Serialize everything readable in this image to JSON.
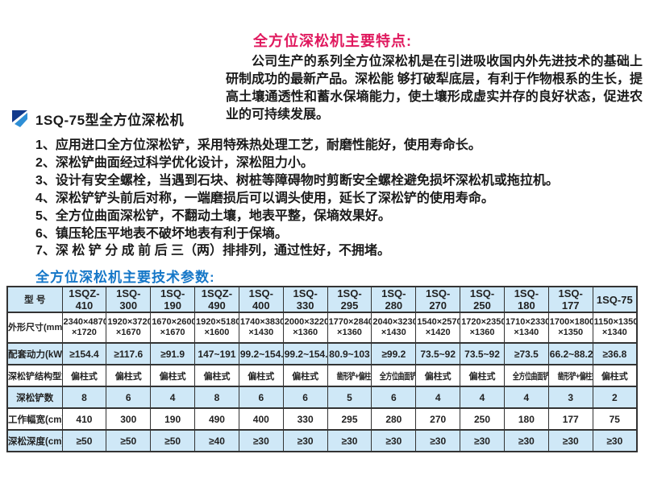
{
  "colors": {
    "feature_heading": "#e0195e",
    "params_heading": "#1577c8",
    "logo_dark": "#123a8c",
    "logo_light": "#2e8fd6",
    "table_row_alt": "#cfe8f7",
    "table_border": "#333333"
  },
  "features_section": {
    "heading": "全方位深松机主要特点:",
    "intro_paragraph": "公司生产的系列全方位深松机是在引进吸收国内外先进技术的基础上研制成功的最新产品。深松能 够打破犁底层，有利于作物根系的生长，提高土壤通透性和蓄水保墒能力，使土壤形成虚实并存的良好状态，促进农业的可持续发展。",
    "product_label": "1SQ-75型全方位深松机",
    "logo_icon": "blue-triangles-logo-icon",
    "features": [
      "1、应用进口全方位深松铲，采用特殊热处理工艺，耐磨性能好，使用寿命长。",
      "2、深松铲曲面经过科学优化设计，深松阻力小。",
      "3、设计有安全螺栓，当遇到石块、树桩等障碍物时剪断安全螺栓避免损坏深松机或拖拉机。",
      "4、深松铲铲头前后对称，一端磨损后可以调头使用，延长了深松铲的使用寿命。",
      "5、全方位曲面深松铲，不翻动土壤，地表平整，保墒效果好。",
      "6、镇压轮压平地表不破坏地表有利于保墒。",
      "7、深 松 铲 分 成 前 后 三（两）排排列，通过性好，不拥堵。"
    ]
  },
  "params_section": {
    "heading": "全方位深松机主要技术参数:",
    "table": {
      "corner_label": "型 号",
      "models": [
        "1SQZ-410",
        "1SQ-300",
        "1SQ-190",
        "1SQZ-490",
        "1SQ-400",
        "1SQ-330",
        "1SQ-295",
        "1SQ-280",
        "1SQ-270",
        "1SQ-250",
        "1SQ-180",
        "1SQ-177",
        "1SQ-75"
      ],
      "rows": [
        {
          "label": "外形尺寸(mm)",
          "values": [
            "2340×4870×1720",
            "1920×3720×1670",
            "1670×2600×1670",
            "1920×5180×1600",
            "1740×3830×1430",
            "2000×3220×1360",
            "1770×2840×1360",
            "2040×3230×1430",
            "1540×2570×1420",
            "1720×2350×1360",
            "1710×2330×1340",
            "1700×1800×1350",
            "1150×1350×1340"
          ]
        },
        {
          "label": "配套动力(kW)",
          "values": [
            "≥154.4",
            "≥117.6",
            "≥91.9",
            "147~191",
            "99.2~154.4",
            "99.2~154.4",
            "80.9~103",
            "≥99.2",
            "73.5~92",
            "73.5~92",
            "≥73.5",
            "66.2~88.2",
            "≥36.8"
          ]
        },
        {
          "label": "深松铲结构型式",
          "values": [
            "偏柱式",
            "偏柱式",
            "偏柱式",
            "偏柱式",
            "偏柱式",
            "偏柱式",
            "凿形铲+偏柱式",
            "全方位曲面铲",
            "偏柱式",
            "偏柱式",
            "全方位曲面铲",
            "凿形铲+偏柱式",
            "偏柱式"
          ]
        },
        {
          "label": "深松铲数",
          "values": [
            "8",
            "6",
            "4",
            "8",
            "6",
            "6",
            "5",
            "6",
            "4",
            "4",
            "4",
            "3",
            "2"
          ]
        },
        {
          "label": "工作幅宽(cm)",
          "values": [
            "410",
            "300",
            "190",
            "490",
            "400",
            "330",
            "295",
            "280",
            "270",
            "250",
            "180",
            "177",
            "75"
          ]
        },
        {
          "label": "深松深度(cm)",
          "values": [
            "≥50",
            "≥50",
            "≥50",
            "≥40",
            "≥30",
            "≥30",
            "≥30",
            "≥30",
            "≥30",
            "≥30",
            "≥30",
            "≥30",
            "≥30"
          ]
        }
      ]
    }
  }
}
